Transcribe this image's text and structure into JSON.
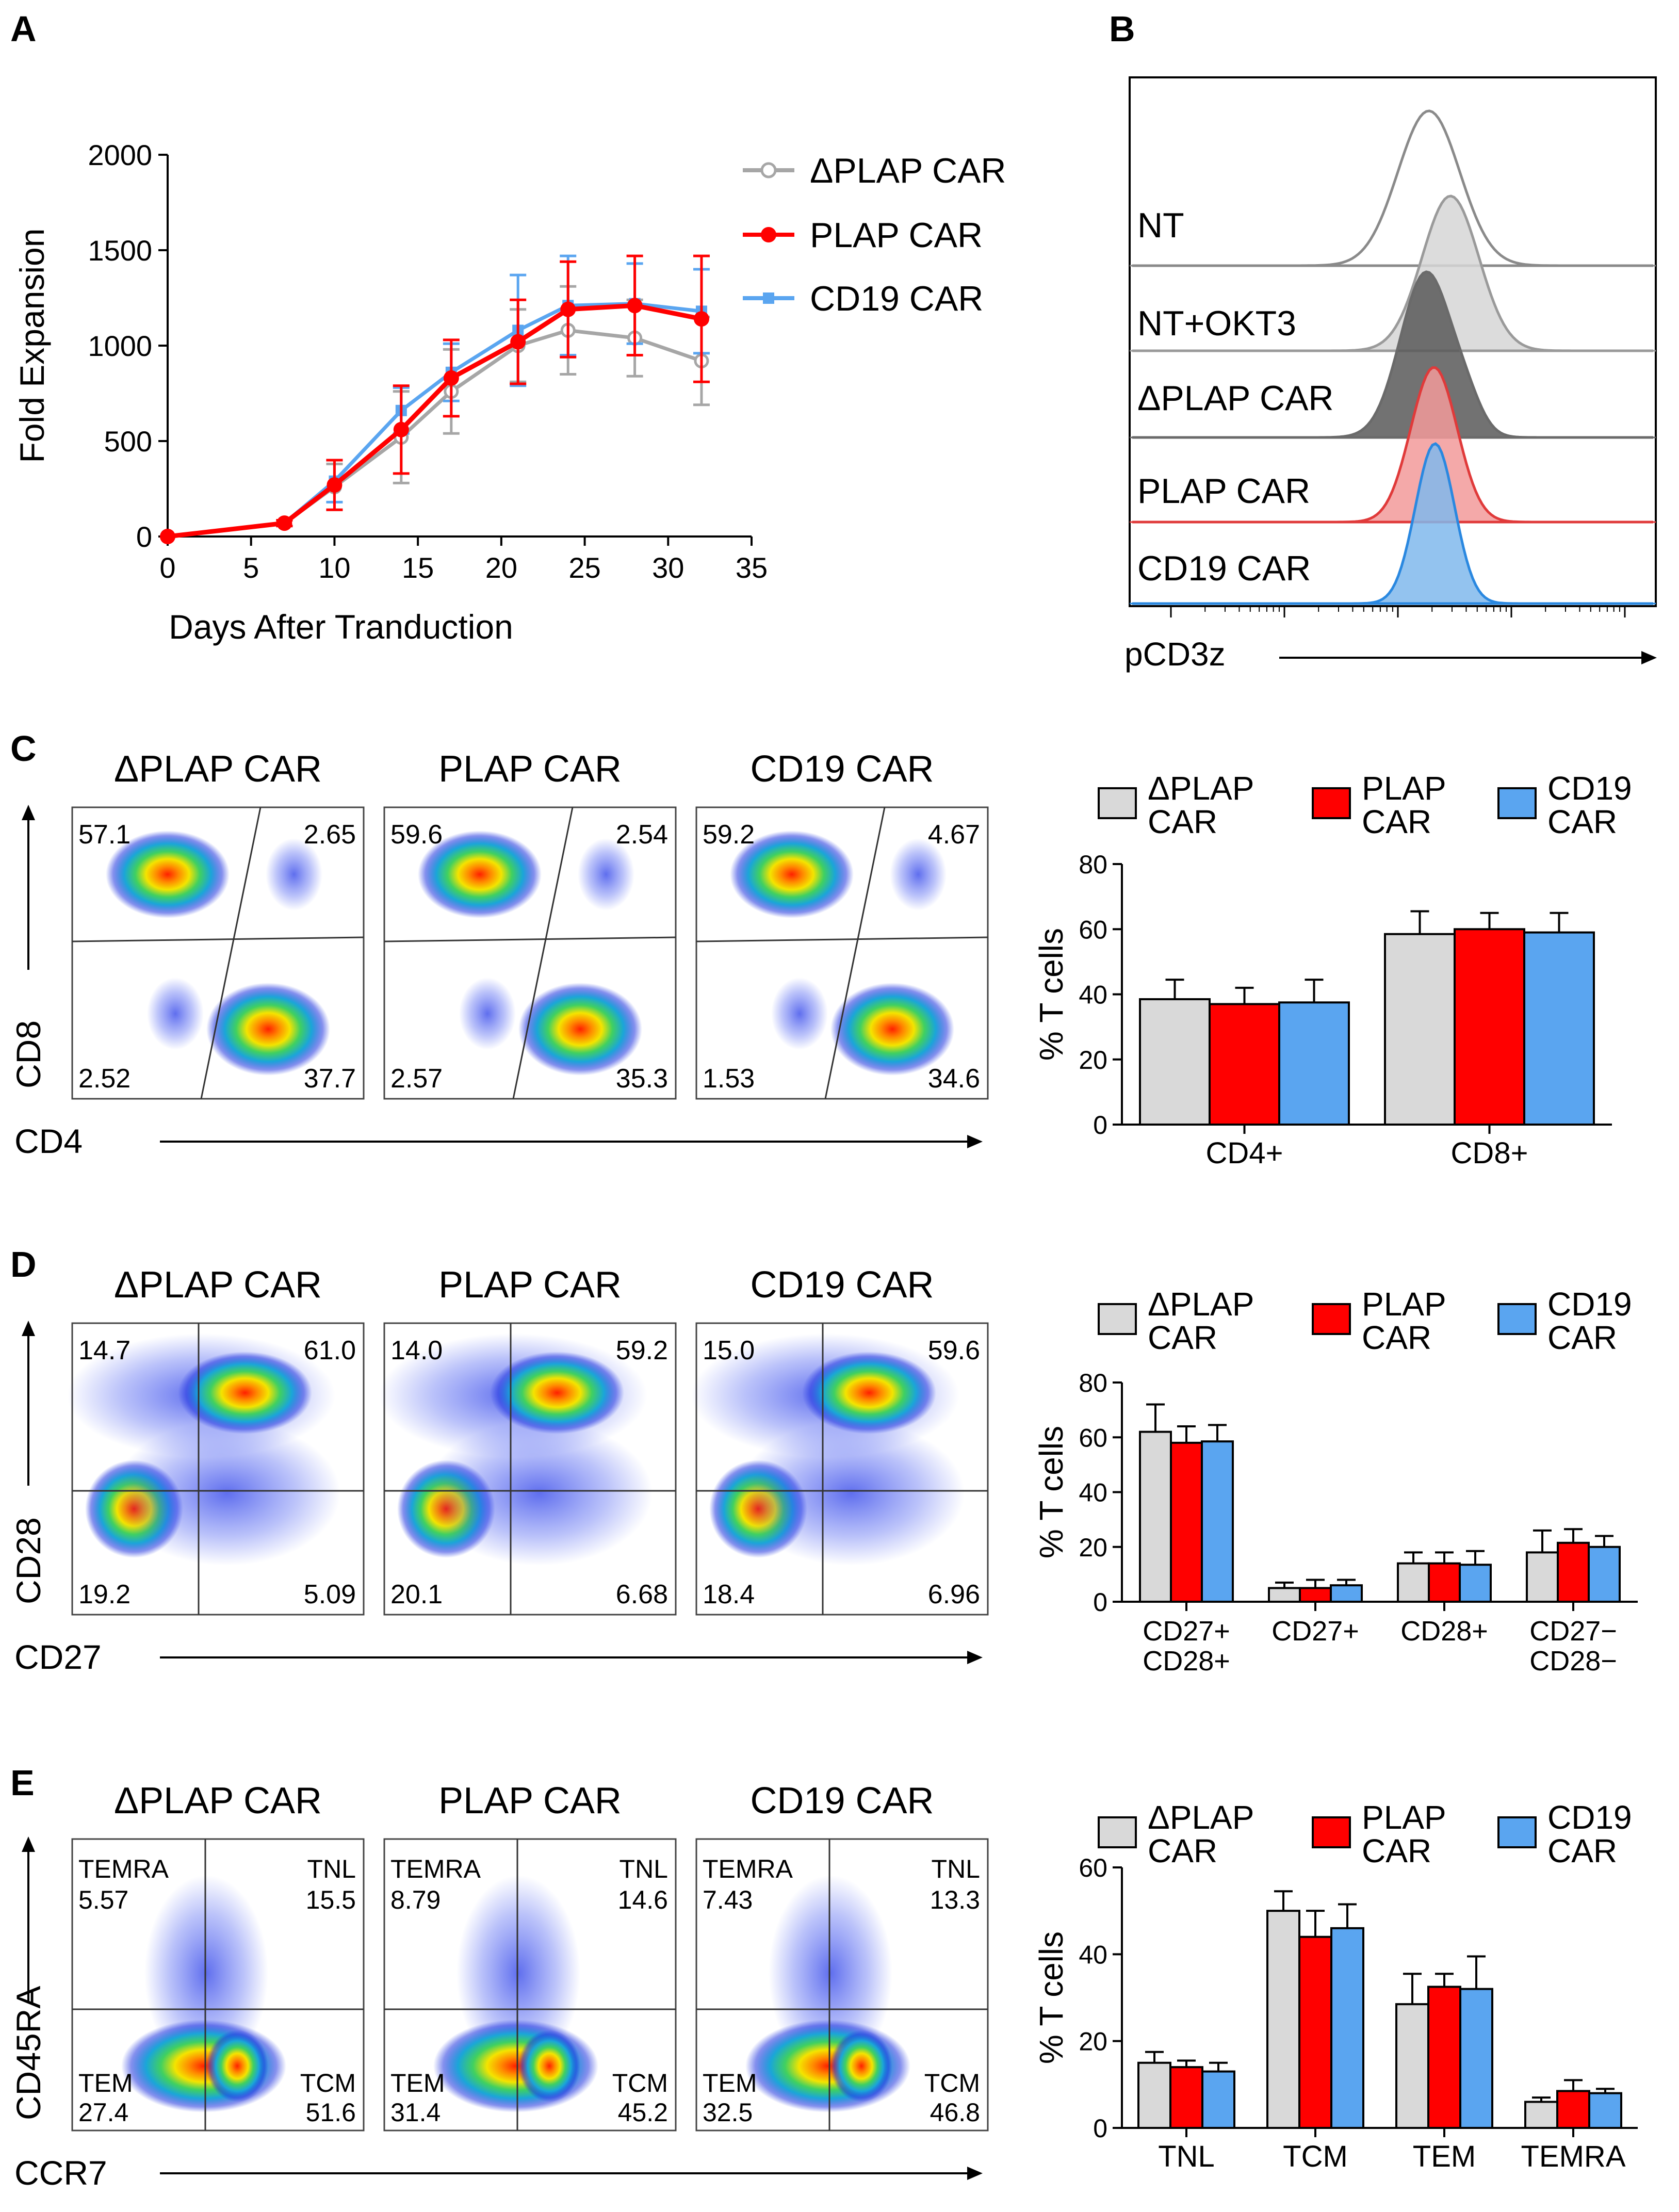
{
  "panels": {
    "A": "A",
    "B": "B",
    "C": "C",
    "D": "D",
    "E": "E"
  },
  "colors": {
    "dplap": "#a6a6a6",
    "plap": "#ff0000",
    "cd19": "#5aa5f0",
    "bar_dplap": "#d9d9d9"
  },
  "chart_data": [
    {
      "id": "A",
      "type": "line",
      "title": "",
      "xlabel": "Days After Tranduction",
      "ylabel": "Fold Expansion",
      "xlim": [
        0,
        35
      ],
      "ylim": [
        0,
        2000
      ],
      "xticks": [
        "0",
        "5",
        "10",
        "15",
        "20",
        "25",
        "30",
        "35"
      ],
      "yticks": [
        "0",
        "500",
        "1000",
        "1500",
        "2000"
      ],
      "legend": [
        "ΔPLAP CAR",
        "PLAP CAR",
        "CD19 CAR"
      ],
      "x": [
        0,
        7,
        10,
        14,
        17,
        21,
        24,
        28,
        32
      ],
      "series": [
        {
          "name": "ΔPLAP CAR",
          "values": [
            0,
            70,
            260,
            520,
            760,
            1000,
            1080,
            1040,
            920
          ],
          "err": [
            0,
            15,
            120,
            240,
            220,
            190,
            230,
            200,
            230
          ]
        },
        {
          "name": "PLAP CAR",
          "values": [
            0,
            70,
            270,
            560,
            830,
            1020,
            1190,
            1210,
            1140
          ],
          "err": [
            0,
            15,
            130,
            230,
            200,
            220,
            250,
            260,
            330
          ]
        },
        {
          "name": "CD19 CAR",
          "values": [
            0,
            70,
            290,
            660,
            860,
            1080,
            1210,
            1220,
            1180
          ],
          "err": [
            0,
            15,
            110,
            120,
            150,
            290,
            260,
            210,
            220
          ]
        }
      ]
    },
    {
      "id": "B",
      "type": "histogram",
      "xlabel": "pCD3z",
      "rows": [
        "NT",
        "NT+OKT3",
        "ΔPLAP CAR",
        "PLAP CAR",
        "CD19 CAR"
      ]
    },
    {
      "id": "C",
      "type": "bar",
      "ylabel": "% T cells",
      "ylim": [
        0,
        80
      ],
      "yticks": [
        "0",
        "20",
        "40",
        "60",
        "80"
      ],
      "categories": [
        "CD4+",
        "CD8+"
      ],
      "legend": [
        "ΔPLAP CAR",
        "PLAP CAR",
        "CD19 CAR"
      ],
      "series": [
        {
          "name": "ΔPLAP CAR",
          "values": [
            38.5,
            58.5
          ],
          "err": [
            6,
            7
          ]
        },
        {
          "name": "PLAP CAR",
          "values": [
            37,
            60
          ],
          "err": [
            5,
            5
          ]
        },
        {
          "name": "CD19 CAR",
          "values": [
            37.5,
            59
          ],
          "err": [
            7,
            6
          ]
        }
      ]
    },
    {
      "id": "D",
      "type": "bar",
      "ylabel": "% T cells",
      "ylim": [
        0,
        80
      ],
      "yticks": [
        "0",
        "20",
        "40",
        "60",
        "80"
      ],
      "categories": [
        "CD27+\nCD28+",
        "CD27+",
        "CD28+",
        "CD27−\nCD28−"
      ],
      "legend": [
        "ΔPLAP CAR",
        "PLAP CAR",
        "CD19 CAR"
      ],
      "series": [
        {
          "name": "ΔPLAP CAR",
          "values": [
            62,
            5,
            14,
            18
          ],
          "err": [
            10,
            2,
            4,
            8
          ]
        },
        {
          "name": "PLAP CAR",
          "values": [
            58,
            5,
            14,
            21.5
          ],
          "err": [
            6,
            3,
            4,
            5
          ]
        },
        {
          "name": "CD19 CAR",
          "values": [
            58.5,
            6,
            13.5,
            20
          ],
          "err": [
            6,
            2,
            5,
            4
          ]
        }
      ]
    },
    {
      "id": "E",
      "type": "bar",
      "ylabel": "% T cells",
      "ylim": [
        0,
        60
      ],
      "yticks": [
        "0",
        "20",
        "40",
        "60"
      ],
      "categories": [
        "TNL",
        "TCM",
        "TEM",
        "TEMRA"
      ],
      "legend": [
        "ΔPLAP CAR",
        "PLAP CAR",
        "CD19 CAR"
      ],
      "series": [
        {
          "name": "ΔPLAP CAR",
          "values": [
            15,
            50,
            28.5,
            6
          ],
          "err": [
            2.5,
            4.5,
            7,
            1
          ]
        },
        {
          "name": "PLAP CAR",
          "values": [
            14,
            44,
            32.5,
            8.5
          ],
          "err": [
            1.5,
            6,
            3,
            2.5
          ]
        },
        {
          "name": "CD19 CAR",
          "values": [
            13,
            46,
            32,
            8
          ],
          "err": [
            2,
            5.5,
            7.5,
            1
          ]
        }
      ]
    }
  ],
  "flow": {
    "C": {
      "xlabel": "CD4",
      "ylabel": "CD8",
      "plots": [
        {
          "title": "ΔPLAP CAR",
          "tl": "57.1",
          "tr": "2.65",
          "bl": "2.52",
          "br": "37.7"
        },
        {
          "title": "PLAP CAR",
          "tl": "59.6",
          "tr": "2.54",
          "bl": "2.57",
          "br": "35.3"
        },
        {
          "title": "CD19 CAR",
          "tl": "59.2",
          "tr": "4.67",
          "bl": "1.53",
          "br": "34.6"
        }
      ]
    },
    "D": {
      "xlabel": "CD27",
      "ylabel": "CD28",
      "plots": [
        {
          "title": "ΔPLAP CAR",
          "tl": "14.7",
          "tr": "61.0",
          "bl": "19.2",
          "br": "5.09"
        },
        {
          "title": "PLAP CAR",
          "tl": "14.0",
          "tr": "59.2",
          "bl": "20.1",
          "br": "6.68"
        },
        {
          "title": "CD19 CAR",
          "tl": "15.0",
          "tr": "59.6",
          "bl": "18.4",
          "br": "6.96"
        }
      ]
    },
    "E": {
      "xlabel": "CCR7",
      "ylabel": "CD45RA",
      "plots": [
        {
          "title": "ΔPLAP CAR",
          "tl_name": "TEMRA",
          "tl": "5.57",
          "tr_name": "TNL",
          "tr": "15.5",
          "bl_name": "TEM",
          "bl": "27.4",
          "br_name": "TCM",
          "br": "51.6"
        },
        {
          "title": "PLAP CAR",
          "tl_name": "TEMRA",
          "tl": "8.79",
          "tr_name": "TNL",
          "tr": "14.6",
          "bl_name": "TEM",
          "bl": "31.4",
          "br_name": "TCM",
          "br": "45.2"
        },
        {
          "title": "CD19 CAR",
          "tl_name": "TEMRA",
          "tl": "7.43",
          "tr_name": "TNL",
          "tr": "13.3",
          "bl_name": "TEM",
          "bl": "32.5",
          "br_name": "TCM",
          "br": "46.8"
        }
      ]
    }
  }
}
